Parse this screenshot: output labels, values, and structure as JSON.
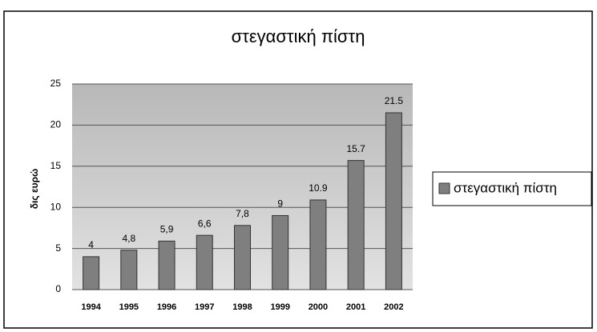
{
  "chart_data": {
    "type": "bar",
    "title": "στεγαστική πίστη",
    "y_label": "δις ευρώ",
    "categories": [
      "1994",
      "1995",
      "1996",
      "1997",
      "1998",
      "1999",
      "2000",
      "2001",
      "2002"
    ],
    "series": [
      {
        "name": "στεγαστική πίστη",
        "color": "#7f7f7f",
        "values": [
          4,
          4.8,
          5.9,
          6.6,
          7.8,
          9,
          10.9,
          15.7,
          21.5
        ],
        "value_labels": [
          "4",
          "4,8",
          "5,9",
          "6,6",
          "7,8",
          "9",
          "10.9",
          "15.7",
          "21.5"
        ]
      }
    ],
    "ylim": [
      0,
      25
    ],
    "yticks": [
      0,
      5,
      10,
      15,
      20,
      25
    ],
    "grid": true,
    "legend": "right"
  }
}
